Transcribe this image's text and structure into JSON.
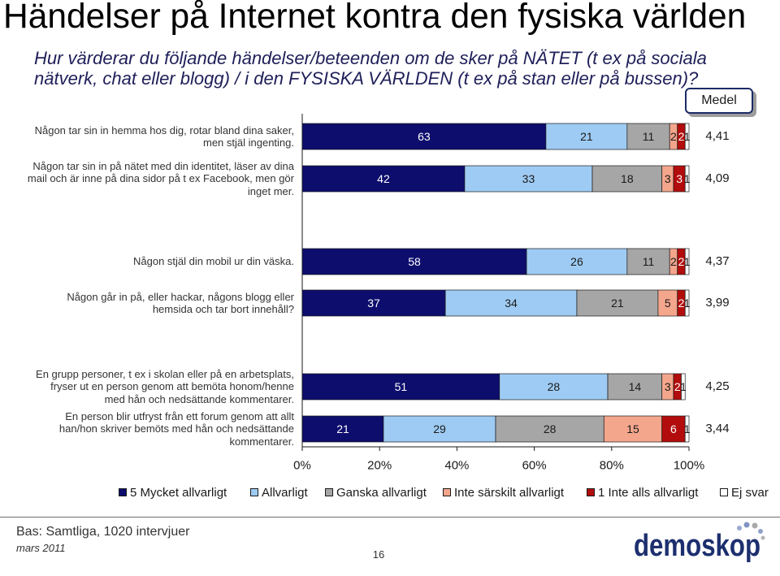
{
  "slide": {
    "title": "Händelser på Internet kontra den fysiska världen",
    "question": "Hur värderar du följande händelser/beteenden om de sker på NÄTET (t ex på sociala\nnätverk, chat eller blogg) / i den FYSISKA VÄRLDEN (t ex på stan eller på bussen)?"
  },
  "chart_data": {
    "type": "bar",
    "orientation": "horizontal",
    "stacked": true,
    "unit": "%",
    "xlim": [
      0,
      100
    ],
    "xticks": [
      0,
      20,
      40,
      60,
      80,
      100
    ],
    "xtick_labels": [
      "0%",
      "20%",
      "40%",
      "60%",
      "80%",
      "100%"
    ],
    "legend_position": "bottom",
    "categories": [
      "Någon tar sin in hemma hos dig, rotar bland dina saker,\nmen stjäl ingenting.",
      "Någon tar sin in på nätet med din identitet, läser av dina\nmail och är inne på dina sidor på t ex Facebook, men gör\ninget mer.",
      "Någon stjäl din mobil ur din väska.",
      "Någon går in på, eller hackar, någons blogg eller\nhemsida och tar bort innehåll?",
      "En grupp personer, t ex i skolan eller på en arbetsplats,\nfryser ut en person genom att bemöta honom/henne\nmed hån och nedsättande kommentarer.",
      "En person blir utfryst från ett forum genom att allt\nhan/hon skriver bemöts med hån och nedsättande\nkommentarer."
    ],
    "series": [
      {
        "name": "5 Mycket allvarligt",
        "color": "#0d0d6e",
        "values": [
          63,
          42,
          58,
          37,
          51,
          21
        ]
      },
      {
        "name": "Allvarligt",
        "color": "#9ecbf3",
        "values": [
          21,
          33,
          26,
          34,
          28,
          29
        ]
      },
      {
        "name": "Ganska allvarligt",
        "color": "#a6a6a6",
        "values": [
          11,
          18,
          11,
          21,
          14,
          28
        ]
      },
      {
        "name": "Inte särskilt allvarligt",
        "color": "#f4a68c",
        "values": [
          2,
          3,
          2,
          5,
          3,
          15
        ]
      },
      {
        "name": "1 Inte alls allvarligt",
        "color": "#b20c0c",
        "values": [
          2,
          3,
          2,
          2,
          2,
          6
        ]
      },
      {
        "name": "Ej svar",
        "color": "#ffffff",
        "values": [
          1,
          1,
          1,
          1,
          1,
          1
        ]
      }
    ],
    "mean_label": "Medel",
    "means": [
      "4,41",
      "4,09",
      "4,37",
      "3,99",
      "4,25",
      "3,44"
    ]
  },
  "footer": {
    "base": "Bas: Samtliga, 1020 intervjuer",
    "date": "mars 2011",
    "page_number": "16",
    "logo_text": "demoskop",
    "logo_color": "#1c2f6e"
  }
}
